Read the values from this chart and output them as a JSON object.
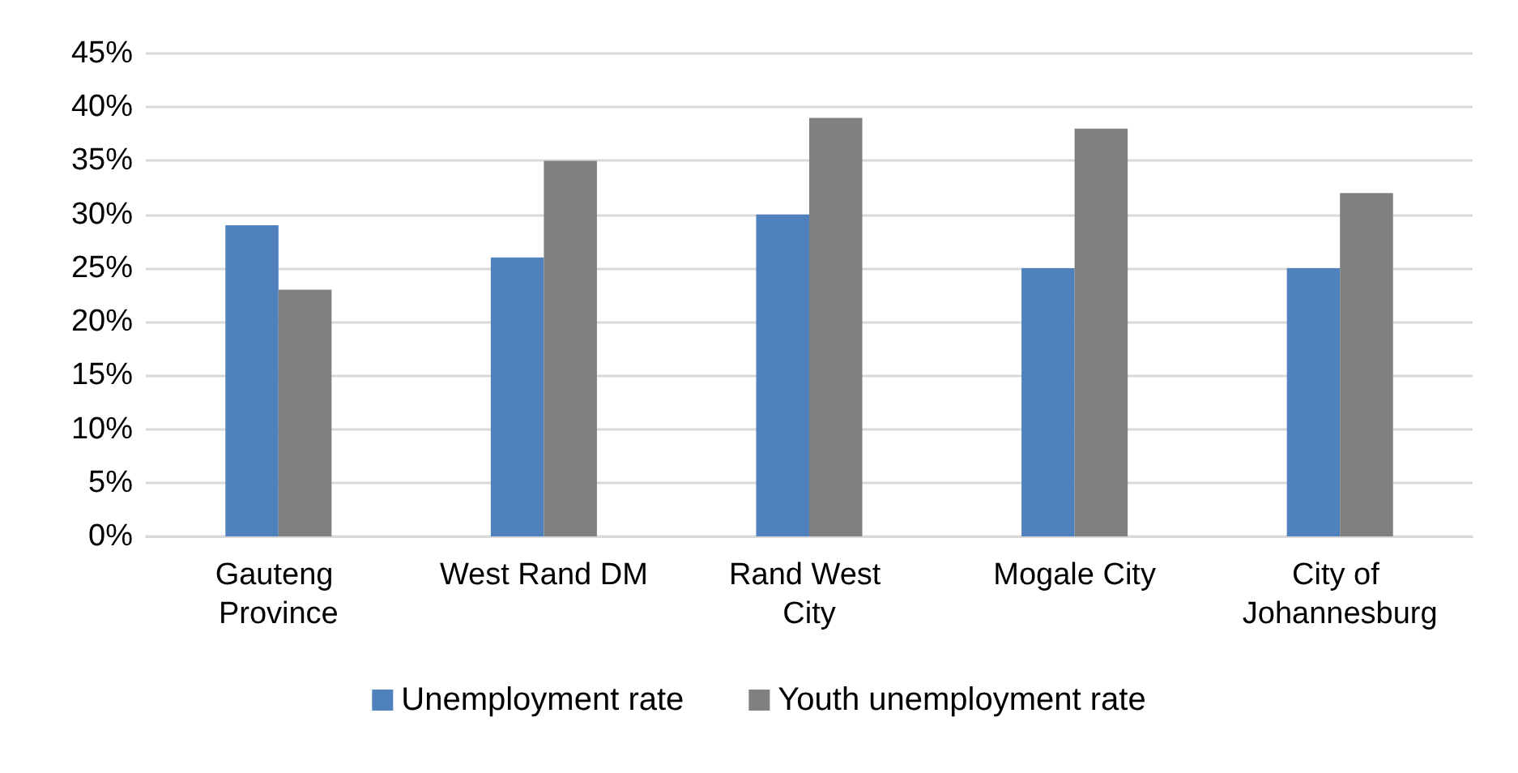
{
  "chart_data": {
    "type": "bar",
    "categories": [
      "Gauteng Province",
      "West Rand DM",
      "Rand West City",
      "Mogale City",
      "City of Johannesburg"
    ],
    "series": [
      {
        "name": "Unemployment rate",
        "color": "#4f81bd",
        "values": [
          29,
          26,
          30,
          25,
          25
        ]
      },
      {
        "name": "Youth unemployment rate",
        "color": "#808080",
        "values": [
          23,
          35,
          39,
          38,
          32
        ]
      }
    ],
    "ylim": [
      0,
      45
    ],
    "yticks": [
      {
        "value": 0,
        "label": "0%"
      },
      {
        "value": 5,
        "label": "5%"
      },
      {
        "value": 10,
        "label": "10%"
      },
      {
        "value": 15,
        "label": "15%"
      },
      {
        "value": 20,
        "label": "20%"
      },
      {
        "value": 25,
        "label": "25%"
      },
      {
        "value": 30,
        "label": "30%"
      },
      {
        "value": 35,
        "label": "35%"
      },
      {
        "value": 40,
        "label": "40%"
      },
      {
        "value": 45,
        "label": "45%"
      }
    ],
    "grid": "y",
    "legend": "bottom"
  }
}
